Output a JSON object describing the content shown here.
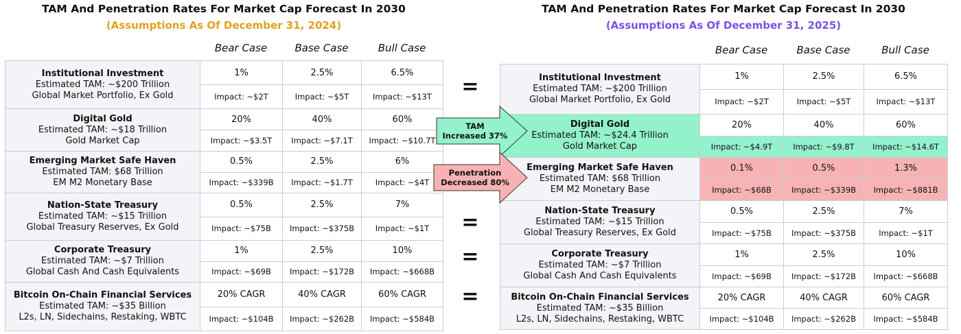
{
  "left": {
    "title": "TAM And Penetration Rates For Market Cap Forecast In 2030",
    "subtitle": "(Assumptions As Of December 31, 2024)",
    "subtitle_color": "#e0a21e",
    "headers": [
      "Bear Case",
      "Base Case",
      "Bull Case"
    ],
    "rows": [
      {
        "name": "Institutional Investment",
        "tam": "Estimated TAM: ~$200 Trillion",
        "base": "Global Market Portfolio, Ex Gold",
        "cases": [
          "1%",
          "2.5%",
          "6.5%"
        ],
        "impacts": [
          "Impact: ~$2T",
          "Impact: ~$5T",
          "Impact: ~$13T"
        ]
      },
      {
        "name": "Digital Gold",
        "tam": "Estimated TAM: ~$18 Trillion",
        "base": "Gold Market Cap",
        "cases": [
          "20%",
          "40%",
          "60%"
        ],
        "impacts": [
          "Impact: ~$3.5T",
          "Impact: ~$7.1T",
          "Impact: ~$10.7T"
        ]
      },
      {
        "name": "Emerging Market Safe Haven",
        "tam": "Estimated TAM: $68 Trillion",
        "base": "EM M2 Monetary Base",
        "cases": [
          "0.5%",
          "2.5%",
          "6%"
        ],
        "impacts": [
          "Impact: ~$339B",
          "Impact: ~$1.7T",
          "Impact: ~$4T"
        ]
      },
      {
        "name": "Nation-State Treasury",
        "tam": "Estimated TAM: ~$15 Trillion",
        "base": "Global Treasury Reserves, Ex Gold",
        "cases": [
          "0.5%",
          "2.5%",
          "7%"
        ],
        "impacts": [
          "Impact: ~$75B",
          "Impact: ~$375B",
          "Impact: ~$1T"
        ]
      },
      {
        "name": "Corporate Treasury",
        "tam": "Estimated TAM: ~$7 Trillion",
        "base": "Global Cash And Cash Equivalents",
        "cases": [
          "1%",
          "2.5%",
          "10%"
        ],
        "impacts": [
          "Impact: ~$69B",
          "Impact: ~$172B",
          "Impact: ~$668B"
        ]
      },
      {
        "name": "Bitcoin On-Chain Financial Services",
        "tam": "Estimated TAM: ~$35 Billion",
        "base": "L2s, LN, Sidechains, Restaking, WBTC",
        "cases": [
          "20% CAGR",
          "40% CAGR",
          "60% CAGR"
        ],
        "impacts": [
          "Impact: ~$104B",
          "Impact: ~$262B",
          "Impact: ~$584B"
        ]
      }
    ]
  },
  "right": {
    "title": "TAM And Penetration Rates For Market Cap Forecast In 2030",
    "subtitle": "(Assumptions As Of December 31, 2025)",
    "subtitle_color": "#7b52e6",
    "headers": [
      "Bear Case",
      "Base Case",
      "Bull Case"
    ],
    "rows": [
      {
        "name": "Institutional Investment",
        "tam": "Estimated TAM: ~$200 Trillion",
        "base": "Global Market Portfolio, Ex Gold",
        "cases": [
          "1%",
          "2.5%",
          "6.5%"
        ],
        "impacts": [
          "Impact: ~$2T",
          "Impact: ~$5T",
          "Impact: ~$13T"
        ]
      },
      {
        "name": "Digital Gold",
        "tam": "Estimated TAM: ~$24.4 Trillion",
        "base": "Gold Market Cap",
        "cases": [
          "20%",
          "40%",
          "60%"
        ],
        "impacts": [
          "Impact: ~$4.9T",
          "Impact: ~$9.8T",
          "Impact: ~$14.6T"
        ],
        "fill": {
          "name": "#93f2cb",
          "impacts": "#93f2cb"
        }
      },
      {
        "name": "Emerging Market Safe Haven",
        "tam": "Estimated TAM: $68 Trillion",
        "base": "EM M2 Monetary Base",
        "cases": [
          "0.1%",
          "0.5%",
          "1.3%"
        ],
        "impacts": [
          "Impact: ~$68B",
          "Impact: ~$339B",
          "Impact: ~$881B"
        ],
        "fill": {
          "cases": "#f7b3b3",
          "impacts": "#f7b3b3"
        }
      },
      {
        "name": "Nation-State Treasury",
        "tam": "Estimated TAM: ~$15 Trillion",
        "base": "Global Treasury Reserves, Ex Gold",
        "cases": [
          "0.5%",
          "2.5%",
          "7%"
        ],
        "impacts": [
          "Impact: ~$75B",
          "Impact: ~$375B",
          "Impact: ~$1T"
        ]
      },
      {
        "name": "Corporate Treasury",
        "tam": "Estimated TAM: ~$7 Trillion",
        "base": "Global Cash And Cash Equivalents",
        "cases": [
          "1%",
          "2.5%",
          "10%"
        ],
        "impacts": [
          "Impact: ~$69B",
          "Impact: ~$172B",
          "Impact: ~$668B"
        ]
      },
      {
        "name": "Bitcoin On-Chain Financial Services",
        "tam": "Estimated TAM: ~$35 Billion",
        "base": "L2s, LN, Sidechains, Restaking, WBTC",
        "cases": [
          "20% CAGR",
          "40% CAGR",
          "60% CAGR"
        ],
        "impacts": [
          "Impact: ~$104B",
          "Impact: ~$262B",
          "Impact: ~$584B"
        ]
      }
    ]
  },
  "middle": {
    "equals": [
      "=",
      "=",
      "=",
      "="
    ],
    "arrows": [
      {
        "lines": [
          "TAM",
          "Increased 37%"
        ],
        "color": "#93f2cb"
      },
      {
        "lines": [
          "Penetration",
          "Decreased 80%"
        ],
        "color": "#f7b3b3"
      }
    ]
  }
}
